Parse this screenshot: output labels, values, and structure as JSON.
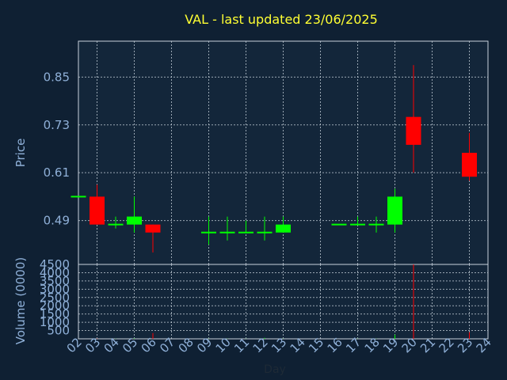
{
  "chart_data": {
    "type": "candlestick",
    "title": "VAL - last updated 23/06/2025",
    "price_ylabel": "Price",
    "volume_ylabel": "Volume (0000)",
    "xlabel": "Day",
    "price_ylim": [
      0.38,
      0.94
    ],
    "price_yticks": [
      "0.49",
      "0.61",
      "0.73",
      "0.85"
    ],
    "volume_ylim": [
      0,
      4500
    ],
    "volume_yticks": [
      "500",
      "1000",
      "1500",
      "2000",
      "2500",
      "3000",
      "3500",
      "4000",
      "4500"
    ],
    "x_range": [
      2,
      24
    ],
    "x_ticks": [
      "02",
      "03",
      "04",
      "05",
      "06",
      "07",
      "08",
      "09",
      "10",
      "11",
      "12",
      "13",
      "14",
      "15",
      "16",
      "17",
      "18",
      "19",
      "20",
      "21",
      "22",
      "23",
      "24"
    ],
    "grid": true,
    "colors": {
      "up": "#00ff00",
      "down": "#ff0000",
      "title": "#ffff33",
      "axis_text": "#8fb0d8",
      "background": "#0f2033",
      "panel": "#13263a"
    },
    "candles": [
      {
        "day": 2,
        "open": 0.55,
        "close": 0.55,
        "high": 0.55,
        "low": 0.55,
        "volume": 0
      },
      {
        "day": 3,
        "open": 0.55,
        "close": 0.48,
        "high": 0.58,
        "low": 0.48,
        "volume": 20
      },
      {
        "day": 4,
        "open": 0.48,
        "close": 0.48,
        "high": 0.5,
        "low": 0.47,
        "volume": 10
      },
      {
        "day": 5,
        "open": 0.48,
        "close": 0.5,
        "high": 0.55,
        "low": 0.46,
        "volume": 30
      },
      {
        "day": 6,
        "open": 0.48,
        "close": 0.46,
        "high": 0.48,
        "low": 0.41,
        "volume": 350
      },
      {
        "day": 9,
        "open": 0.46,
        "close": 0.46,
        "high": 0.5,
        "low": 0.43,
        "volume": 10
      },
      {
        "day": 10,
        "open": 0.46,
        "close": 0.46,
        "high": 0.5,
        "low": 0.44,
        "volume": 10
      },
      {
        "day": 11,
        "open": 0.46,
        "close": 0.46,
        "high": 0.49,
        "low": 0.46,
        "volume": 10
      },
      {
        "day": 12,
        "open": 0.46,
        "close": 0.46,
        "high": 0.5,
        "low": 0.44,
        "volume": 60
      },
      {
        "day": 13,
        "open": 0.46,
        "close": 0.48,
        "high": 0.5,
        "low": 0.46,
        "volume": 10
      },
      {
        "day": 16,
        "open": 0.48,
        "close": 0.48,
        "high": 0.48,
        "low": 0.48,
        "volume": 0
      },
      {
        "day": 17,
        "open": 0.48,
        "close": 0.48,
        "high": 0.5,
        "low": 0.48,
        "volume": 10
      },
      {
        "day": 18,
        "open": 0.48,
        "close": 0.48,
        "high": 0.5,
        "low": 0.46,
        "volume": 10
      },
      {
        "day": 19,
        "open": 0.48,
        "close": 0.55,
        "high": 0.57,
        "low": 0.46,
        "volume": 250
      },
      {
        "day": 20,
        "open": 0.75,
        "close": 0.68,
        "high": 0.88,
        "low": 0.61,
        "volume": 4500
      },
      {
        "day": 23,
        "open": 0.66,
        "close": 0.6,
        "high": 0.71,
        "low": 0.59,
        "volume": 400
      }
    ]
  }
}
